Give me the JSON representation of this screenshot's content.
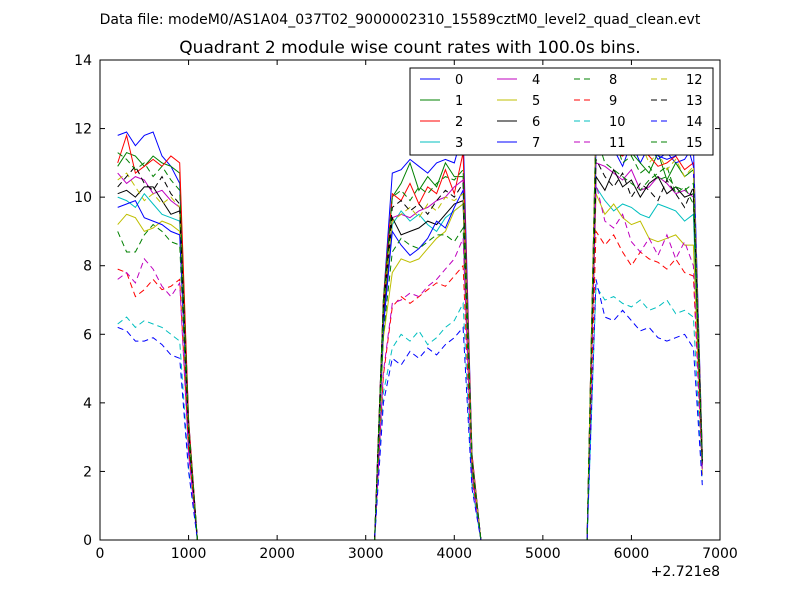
{
  "figure": {
    "suptitle": "Data file: modeM0/AS1A04_037T02_9000002310_15589cztM0_level2_quad_clean.evt"
  },
  "chart_data": {
    "type": "line",
    "title": "Quadrant 2 module wise count rates with 100.0s bins.",
    "xlabel": "",
    "ylabel": "",
    "x_offset_label": "+2.721e8",
    "xlim": [
      0,
      7000
    ],
    "ylim": [
      0,
      14
    ],
    "xticks": [
      0,
      1000,
      2000,
      3000,
      4000,
      5000,
      6000,
      7000
    ],
    "yticks": [
      0,
      2,
      4,
      6,
      8,
      10,
      12,
      14
    ],
    "legend": {
      "placement": "top-right",
      "columns": 4
    },
    "x": [
      200,
      300,
      400,
      500,
      600,
      700,
      800,
      900,
      1000,
      1100,
      1200,
      1300,
      1400,
      1500,
      1600,
      1700,
      1800,
      1900,
      2000,
      2100,
      2200,
      2300,
      2400,
      2500,
      2600,
      2700,
      2800,
      2900,
      3000,
      3100,
      3200,
      3300,
      3400,
      3500,
      3600,
      3700,
      3800,
      3900,
      4000,
      4100,
      4200,
      4300,
      4400,
      4500,
      4600,
      4700,
      4800,
      4900,
      5000,
      5100,
      5200,
      5300,
      5400,
      5500,
      5600,
      5700,
      5800,
      5900,
      6000,
      6100,
      6200,
      6300,
      6400,
      6500,
      6600,
      6700,
      6800
    ],
    "series": [
      {
        "name": "0",
        "color": "#0000ff",
        "dash": "solid",
        "values": [
          11.8,
          11.9,
          11.5,
          11.8,
          11.9,
          11.2,
          10.9,
          10.4,
          3.5,
          0,
          0,
          0,
          0,
          0,
          0,
          0,
          0,
          0,
          0,
          0,
          0,
          0,
          0,
          0,
          0,
          0,
          0,
          0,
          0,
          0,
          7.0,
          10.7,
          10.8,
          11.1,
          10.9,
          10.7,
          11.0,
          11.1,
          11.0,
          11.9,
          2.5,
          0,
          0,
          0,
          0,
          0,
          0,
          0,
          0,
          0,
          0,
          0,
          0,
          0,
          12.3,
          11.6,
          11.4,
          10.9,
          11.6,
          11.0,
          11.5,
          11.1,
          11.3,
          11.0,
          11.1,
          11.5,
          2.5
        ]
      },
      {
        "name": "1",
        "color": "#008000",
        "dash": "solid",
        "values": [
          10.9,
          11.3,
          11.2,
          10.9,
          11.2,
          11.0,
          10.9,
          10.7,
          3.4,
          0,
          0,
          0,
          0,
          0,
          0,
          0,
          0,
          0,
          0,
          0,
          0,
          0,
          0,
          0,
          0,
          0,
          0,
          0,
          0,
          0,
          6.8,
          10.0,
          10.4,
          11.0,
          10.2,
          10.6,
          10.3,
          11.0,
          10.6,
          10.6,
          2.4,
          0,
          0,
          0,
          0,
          0,
          0,
          0,
          0,
          0,
          0,
          0,
          0,
          0,
          11.9,
          11.6,
          11.3,
          11.3,
          11.3,
          11.0,
          10.7,
          11.3,
          10.5,
          11.0,
          10.6,
          10.8,
          2.4
        ]
      },
      {
        "name": "2",
        "color": "#ff0000",
        "dash": "solid",
        "values": [
          11.0,
          11.8,
          10.7,
          10.9,
          11.1,
          10.9,
          11.2,
          11.0,
          3.5,
          0,
          0,
          0,
          0,
          0,
          0,
          0,
          0,
          0,
          0,
          0,
          0,
          0,
          0,
          0,
          0,
          0,
          0,
          0,
          0,
          0,
          7.0,
          10.1,
          9.9,
          10.4,
          9.8,
          10.3,
          10.1,
          10.8,
          10.1,
          11.3,
          2.5,
          0,
          0,
          0,
          0,
          0,
          0,
          0,
          0,
          0,
          0,
          0,
          0,
          0,
          12.2,
          12.0,
          11.3,
          11.2,
          11.4,
          11.4,
          11.2,
          10.9,
          11.0,
          11.2,
          10.8,
          11.0,
          2.5
        ]
      },
      {
        "name": "3",
        "color": "#00bfbf",
        "dash": "solid",
        "values": [
          10.0,
          9.9,
          9.7,
          10.1,
          9.8,
          9.5,
          9.4,
          9.3,
          3.0,
          0,
          0,
          0,
          0,
          0,
          0,
          0,
          0,
          0,
          0,
          0,
          0,
          0,
          0,
          0,
          0,
          0,
          0,
          0,
          0,
          0,
          6.3,
          9.2,
          9.6,
          9.3,
          9.5,
          9.2,
          9.0,
          9.4,
          9.6,
          9.8,
          2.2,
          0,
          0,
          0,
          0,
          0,
          0,
          0,
          0,
          0,
          0,
          0,
          0,
          0,
          10.3,
          9.9,
          9.6,
          9.8,
          9.7,
          9.5,
          9.4,
          9.8,
          9.7,
          9.6,
          9.3,
          9.5,
          2.1
        ]
      },
      {
        "name": "4",
        "color": "#bf00bf",
        "dash": "solid",
        "values": [
          10.7,
          10.4,
          10.6,
          10.5,
          10.1,
          10.2,
          9.9,
          9.7,
          3.1,
          0,
          0,
          0,
          0,
          0,
          0,
          0,
          0,
          0,
          0,
          0,
          0,
          0,
          0,
          0,
          0,
          0,
          0,
          0,
          0,
          0,
          6.5,
          9.4,
          9.5,
          9.4,
          9.6,
          9.7,
          9.9,
          10.0,
          10.3,
          10.5,
          2.3,
          0,
          0,
          0,
          0,
          0,
          0,
          0,
          0,
          0,
          0,
          0,
          0,
          0,
          11.0,
          10.9,
          10.7,
          10.5,
          10.8,
          10.2,
          10.3,
          10.6,
          10.4,
          10.1,
          10.2,
          10.0,
          2.2
        ]
      },
      {
        "name": "5",
        "color": "#bfbf00",
        "dash": "solid",
        "values": [
          9.2,
          9.5,
          9.4,
          9.0,
          9.1,
          9.3,
          9.2,
          9.0,
          2.9,
          0,
          0,
          0,
          0,
          0,
          0,
          0,
          0,
          0,
          0,
          0,
          0,
          0,
          0,
          0,
          0,
          0,
          0,
          0,
          0,
          0,
          5.9,
          7.8,
          8.2,
          8.1,
          8.2,
          8.5,
          8.8,
          9.0,
          9.6,
          9.8,
          2.1,
          0,
          0,
          0,
          0,
          0,
          0,
          0,
          0,
          0,
          0,
          0,
          0,
          0,
          10.1,
          9.5,
          9.8,
          9.4,
          9.2,
          9.3,
          8.8,
          8.7,
          8.8,
          8.9,
          8.6,
          8.6,
          2.0
        ]
      },
      {
        "name": "6",
        "color": "#000000",
        "dash": "solid",
        "values": [
          10.1,
          10.2,
          10.0,
          10.3,
          10.3,
          9.9,
          9.5,
          9.6,
          3.1,
          0,
          0,
          0,
          0,
          0,
          0,
          0,
          0,
          0,
          0,
          0,
          0,
          0,
          0,
          0,
          0,
          0,
          0,
          0,
          0,
          0,
          6.6,
          9.4,
          8.9,
          9.0,
          9.1,
          9.3,
          9.2,
          9.5,
          9.8,
          9.9,
          2.2,
          0,
          0,
          0,
          0,
          0,
          0,
          0,
          0,
          0,
          0,
          0,
          0,
          0,
          10.6,
          10.2,
          10.8,
          10.3,
          10.5,
          10.0,
          10.4,
          10.6,
          10.1,
          10.3,
          10.0,
          10.1,
          2.2
        ]
      },
      {
        "name": "7",
        "color": "#0000ff",
        "dash": "solid",
        "values": [
          9.7,
          9.8,
          9.9,
          9.4,
          9.3,
          9.2,
          9.0,
          8.9,
          2.9,
          0,
          0,
          0,
          0,
          0,
          0,
          0,
          0,
          0,
          0,
          0,
          0,
          0,
          0,
          0,
          0,
          0,
          0,
          0,
          0,
          0,
          6.2,
          9.0,
          8.6,
          8.3,
          8.5,
          8.8,
          9.3,
          9.1,
          9.7,
          10.2,
          2.3,
          0,
          0,
          0,
          0,
          0,
          0,
          0,
          0,
          0,
          0,
          0,
          0,
          0,
          11.4,
          12.9,
          12.7,
          11.3,
          11.9,
          11.5,
          11.6,
          11.2,
          11.1,
          11.2,
          11.8,
          10.9,
          2.4
        ]
      },
      {
        "name": "8",
        "color": "#008000",
        "dash": "dashed",
        "values": [
          9.0,
          8.4,
          8.4,
          8.9,
          9.2,
          9.0,
          8.7,
          8.6,
          2.9,
          0,
          0,
          0,
          0,
          0,
          0,
          0,
          0,
          0,
          0,
          0,
          0,
          0,
          0,
          0,
          0,
          0,
          0,
          0,
          0,
          0,
          6.0,
          8.4,
          8.8,
          8.6,
          8.5,
          8.7,
          8.9,
          8.9,
          8.7,
          9.1,
          2.1,
          0,
          0,
          0,
          0,
          0,
          0,
          0,
          0,
          0,
          0,
          0,
          0,
          0,
          11.8,
          11.0,
          10.8,
          10.6,
          10.4,
          10.2,
          10.5,
          10.7,
          10.9,
          10.1,
          10.3,
          9.8,
          2.3
        ]
      },
      {
        "name": "9",
        "color": "#ff0000",
        "dash": "dashed",
        "values": [
          7.9,
          7.8,
          7.1,
          7.3,
          7.6,
          7.3,
          7.4,
          7.6,
          2.6,
          0,
          0,
          0,
          0,
          0,
          0,
          0,
          0,
          0,
          0,
          0,
          0,
          0,
          0,
          0,
          0,
          0,
          0,
          0,
          0,
          0,
          4.8,
          6.8,
          7.1,
          6.9,
          7.1,
          7.3,
          7.5,
          7.4,
          7.7,
          8.0,
          1.8,
          0,
          0,
          0,
          0,
          0,
          0,
          0,
          0,
          0,
          0,
          0,
          0,
          0,
          9.0,
          8.6,
          8.9,
          8.4,
          8.0,
          8.4,
          8.2,
          8.1,
          7.9,
          8.2,
          7.8,
          7.7,
          1.9
        ]
      },
      {
        "name": "10",
        "color": "#00bfbf",
        "dash": "dashed",
        "values": [
          6.3,
          6.5,
          6.2,
          6.4,
          6.3,
          6.2,
          6.0,
          5.8,
          2.1,
          0,
          0,
          0,
          0,
          0,
          0,
          0,
          0,
          0,
          0,
          0,
          0,
          0,
          0,
          0,
          0,
          0,
          0,
          0,
          0,
          0,
          4.3,
          5.6,
          6.0,
          5.8,
          6.1,
          5.7,
          5.9,
          6.2,
          6.4,
          6.9,
          1.6,
          0,
          0,
          0,
          0,
          0,
          0,
          0,
          0,
          0,
          0,
          0,
          0,
          0,
          7.4,
          7.0,
          7.1,
          6.9,
          6.8,
          7.0,
          6.7,
          6.8,
          7.0,
          6.6,
          6.7,
          6.5,
          1.7
        ]
      },
      {
        "name": "11",
        "color": "#bf00bf",
        "dash": "dashed",
        "values": [
          7.6,
          7.8,
          7.5,
          8.2,
          7.9,
          7.4,
          7.1,
          7.5,
          2.5,
          0,
          0,
          0,
          0,
          0,
          0,
          0,
          0,
          0,
          0,
          0,
          0,
          0,
          0,
          0,
          0,
          0,
          0,
          0,
          0,
          0,
          4.9,
          6.9,
          7.0,
          7.2,
          7.1,
          7.4,
          7.6,
          7.9,
          8.2,
          8.8,
          1.9,
          0,
          0,
          0,
          0,
          0,
          0,
          0,
          0,
          0,
          0,
          0,
          0,
          0,
          10.4,
          9.3,
          9.1,
          9.5,
          8.7,
          8.4,
          8.8,
          8.3,
          8.9,
          8.2,
          8.7,
          8.0,
          2.0
        ]
      },
      {
        "name": "12",
        "color": "#bfbf00",
        "dash": "dashed",
        "values": [
          10.5,
          10.7,
          10.3,
          9.9,
          10.1,
          9.8,
          10.0,
          9.7,
          3.2,
          0,
          0,
          0,
          0,
          0,
          0,
          0,
          0,
          0,
          0,
          0,
          0,
          0,
          0,
          0,
          0,
          0,
          0,
          0,
          0,
          0,
          6.8,
          9.3,
          9.5,
          9.7,
          9.4,
          9.8,
          9.6,
          10.0,
          9.9,
          10.1,
          2.3,
          0,
          0,
          0,
          0,
          0,
          0,
          0,
          0,
          0,
          0,
          0,
          0,
          0,
          12.4,
          11.7,
          12.1,
          11.5,
          11.2,
          11.6,
          11.0,
          11.3,
          10.8,
          11.1,
          10.6,
          10.9,
          2.4
        ]
      },
      {
        "name": "13",
        "color": "#000000",
        "dash": "dashed",
        "values": [
          10.3,
          10.6,
          10.9,
          10.4,
          10.2,
          10.6,
          10.1,
          9.8,
          3.2,
          0,
          0,
          0,
          0,
          0,
          0,
          0,
          0,
          0,
          0,
          0,
          0,
          0,
          0,
          0,
          0,
          0,
          0,
          0,
          0,
          0,
          6.9,
          9.7,
          9.9,
          9.6,
          9.8,
          9.5,
          9.9,
          10.2,
          10.0,
          10.4,
          2.3,
          0,
          0,
          0,
          0,
          0,
          0,
          0,
          0,
          0,
          0,
          0,
          0,
          0,
          11.1,
          10.6,
          10.3,
          10.7,
          10.0,
          10.4,
          10.2,
          9.9,
          10.5,
          10.1,
          9.7,
          10.3,
          2.3
        ]
      },
      {
        "name": "14",
        "color": "#0000ff",
        "dash": "dashed",
        "values": [
          6.2,
          6.1,
          5.8,
          5.8,
          5.9,
          5.7,
          5.4,
          5.3,
          2.0,
          0,
          0,
          0,
          0,
          0,
          0,
          0,
          0,
          0,
          0,
          0,
          0,
          0,
          0,
          0,
          0,
          0,
          0,
          0,
          0,
          0,
          4.0,
          5.3,
          5.1,
          5.5,
          5.3,
          5.6,
          5.4,
          5.7,
          5.9,
          6.2,
          1.5,
          0,
          0,
          0,
          0,
          0,
          0,
          0,
          0,
          0,
          0,
          0,
          0,
          0,
          7.6,
          6.5,
          6.4,
          6.7,
          6.4,
          6.1,
          6.2,
          5.9,
          5.8,
          5.9,
          6.0,
          5.6,
          1.6
        ]
      },
      {
        "name": "15",
        "color": "#008000",
        "dash": "dashed",
        "values": [
          11.3,
          11.1,
          10.8,
          11.0,
          10.6,
          10.9,
          10.5,
          10.2,
          3.4,
          0,
          0,
          0,
          0,
          0,
          0,
          0,
          0,
          0,
          0,
          0,
          0,
          0,
          0,
          0,
          0,
          0,
          0,
          0,
          0,
          0,
          7.0,
          10.0,
          10.2,
          9.9,
          10.3,
          10.1,
          10.4,
          10.6,
          10.5,
          10.8,
          2.4,
          0,
          0,
          0,
          0,
          0,
          0,
          0,
          0,
          0,
          0,
          0,
          0,
          0,
          12.1,
          11.4,
          11.8,
          11.0,
          11.2,
          10.7,
          10.9,
          10.5,
          10.6,
          10.3,
          10.2,
          10.4,
          2.3
        ]
      }
    ]
  }
}
